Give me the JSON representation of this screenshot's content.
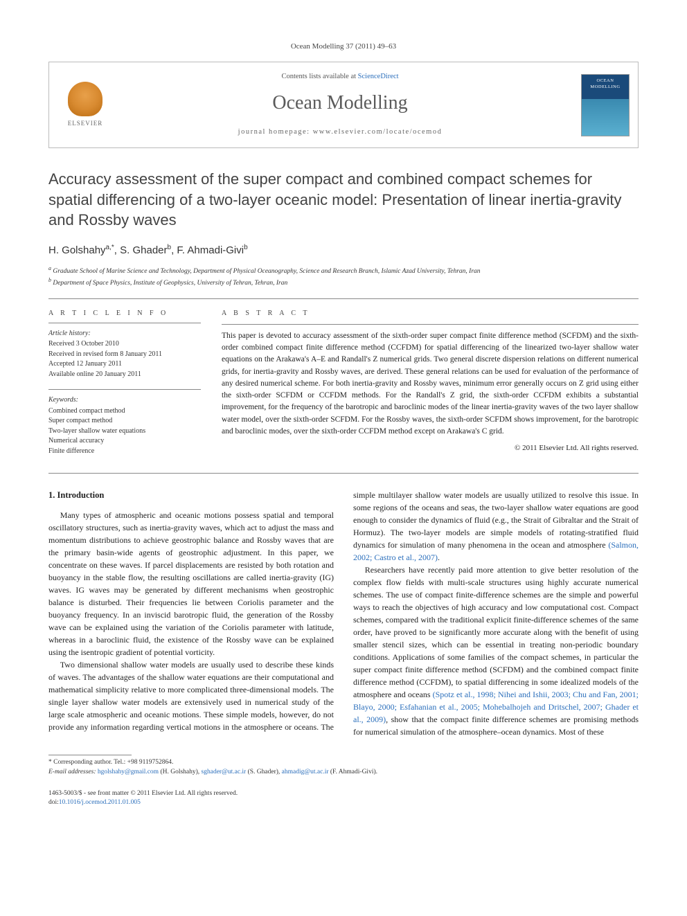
{
  "journal_ref": "Ocean Modelling 37 (2011) 49–63",
  "header": {
    "contents_prefix": "Contents lists available at ",
    "contents_link": "ScienceDirect",
    "journal_name": "Ocean Modelling",
    "homepage_prefix": "journal homepage: ",
    "homepage_url": "www.elsevier.com/locate/ocemod",
    "publisher_label": "ELSEVIER",
    "cover_label": "OCEAN MODELLING"
  },
  "article": {
    "title": "Accuracy assessment of the super compact and combined compact schemes for spatial differencing of a two-layer oceanic model: Presentation of linear inertia-gravity and Rossby waves",
    "authors_html": "H. Golshahy",
    "author1": "H. Golshahy",
    "author1_sup": "a,*",
    "author2": "S. Ghader",
    "author2_sup": "b",
    "author3": "F. Ahmadi-Givi",
    "author3_sup": "b",
    "affiliation_a": "Graduate School of Marine Science and Technology, Department of Physical Oceanography, Science and Research Branch, Islamic Azad University, Tehran, Iran",
    "affiliation_b": "Department of Space Physics, Institute of Geophysics, University of Tehran, Tehran, Iran"
  },
  "info": {
    "heading": "A R T I C L E   I N F O",
    "history_label": "Article history:",
    "received": "Received 3 October 2010",
    "revised": "Received in revised form 8 January 2011",
    "accepted": "Accepted 12 January 2011",
    "online": "Available online 20 January 2011",
    "keywords_label": "Keywords:",
    "keywords": [
      "Combined compact method",
      "Super compact method",
      "Two-layer shallow water equations",
      "Numerical accuracy",
      "Finite difference"
    ]
  },
  "abstract": {
    "heading": "A B S T R A C T",
    "text": "This paper is devoted to accuracy assessment of the sixth-order super compact finite difference method (SCFDM) and the sixth-order combined compact finite difference method (CCFDM) for spatial differencing of the linearized two-layer shallow water equations on the Arakawa's A–E and Randall's Z numerical grids. Two general discrete dispersion relations on different numerical grids, for inertia-gravity and Rossby waves, are derived. These general relations can be used for evaluation of the performance of any desired numerical scheme. For both inertia-gravity and Rossby waves, minimum error generally occurs on Z grid using either the sixth-order SCFDM or CCFDM methods. For the Randall's Z grid, the sixth-order CCFDM exhibits a substantial improvement, for the frequency of the barotropic and baroclinic modes of the linear inertia-gravity waves of the two layer shallow water model, over the sixth-order SCFDM. For the Rossby waves, the sixth-order SCFDM shows improvement, for the barotropic and baroclinic modes, over the sixth-order CCFDM method except on Arakawa's C grid.",
    "copyright": "© 2011 Elsevier Ltd. All rights reserved."
  },
  "section1": {
    "heading": "1. Introduction",
    "p1": "Many types of atmospheric and oceanic motions possess spatial and temporal oscillatory structures, such as inertia-gravity waves, which act to adjust the mass and momentum distributions to achieve geostrophic balance and Rossby waves that are the primary basin-wide agents of geostrophic adjustment. In this paper, we concentrate on these waves. If parcel displacements are resisted by both rotation and buoyancy in the stable flow, the resulting oscillations are called inertia-gravity (IG) waves. IG waves may be generated by different mechanisms when geostrophic balance is disturbed. Their frequencies lie between Coriolis parameter and the buoyancy frequency. In an inviscid barotropic fluid, the generation of the Rossby wave can be explained using the variation of the Coriolis parameter with latitude, whereas in a baroclinic fluid, the existence of the Rossby wave can be explained using the isentropic gradient of potential vorticity.",
    "p2": "Two dimensional shallow water models are usually used to describe these kinds of waves. The advantages of the shallow water equations are their computational and mathematical simplicity relative to more complicated three-dimensional models. The single layer shallow water models are extensively used in numerical study of the large scale atmospheric and oceanic motions. These simple models, however, do not provide any information regarding vertical motions in the atmosphere or oceans. The simple multilayer shallow water models are usually utilized to resolve this issue. In some regions of the oceans and seas, the two-layer shallow water equations are good enough to consider the dynamics of fluid (e.g., the Strait of Gibraltar and the Strait of Hormuz). The two-layer models are simple models of rotating-stratified fluid dynamics for simulation of many phenomena in the ocean and atmosphere ",
    "p2_cite": "(Salmon, 2002; Castro et al., 2007)",
    "p2_tail": ".",
    "p3": "Researchers have recently paid more attention to give better resolution of the complex flow fields with multi-scale structures using highly accurate numerical schemes. The use of compact finite-difference schemes are the simple and powerful ways to reach the objectives of high accuracy and low computational cost. Compact schemes, compared with the traditional explicit finite-difference schemes of the same order, have proved to be significantly more accurate along with the benefit of using smaller stencil sizes, which can be essential in treating non-periodic boundary conditions. Applications of some families of the compact schemes, in particular the super compact finite difference method (SCFDM) and the combined compact finite difference method (CCFDM), to spatial differencing in some idealized models of the atmosphere and oceans ",
    "p3_cite": "(Spotz et al., 1998; Nihei and Ishii, 2003; Chu and Fan, 2001; Blayo, 2000; Esfahanian et al., 2005; Mohebalhojeh and Dritschel, 2007; Ghader et al., 2009)",
    "p3_tail": ", show that the compact finite difference schemes are promising methods for numerical simulation of the atmosphere–ocean dynamics. Most of these"
  },
  "footnotes": {
    "corr_label": "* Corresponding author. Tel.: +98 9119752864.",
    "email_label": "E-mail addresses: ",
    "email1": "hgolshahy@gmail.com",
    "email1_who": " (H. Golshahy), ",
    "email2": "sghader@ut.ac.ir",
    "email2_who": " (S. Ghader), ",
    "email3": "ahmadig@ut.ac.ir",
    "email3_who": " (F. Ahmadi-Givi)."
  },
  "footer": {
    "line1": "1463-5003/$ - see front matter © 2011 Elsevier Ltd. All rights reserved.",
    "doi_prefix": "doi:",
    "doi": "10.1016/j.ocemod.2011.01.005"
  },
  "colors": {
    "link": "#2a6ebb",
    "text": "#222222",
    "muted": "#555555",
    "rule": "#888888"
  }
}
